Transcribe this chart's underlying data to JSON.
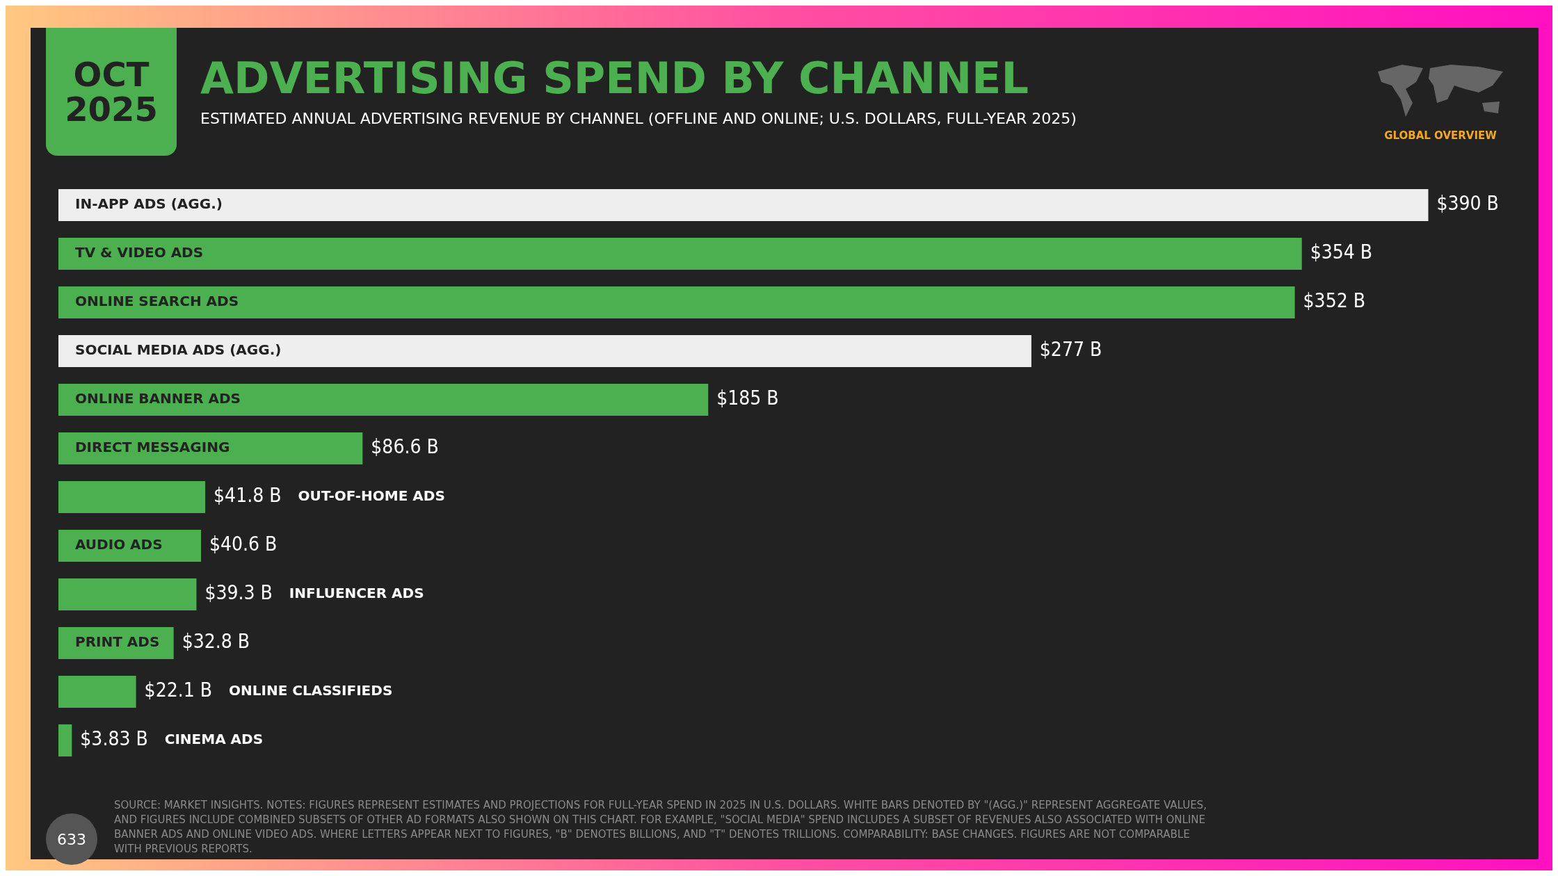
{
  "chart_data": {
    "type": "bar",
    "orientation": "horizontal",
    "title": "ADVERTISING SPEND BY CHANNEL",
    "subtitle": "ESTIMATED ANNUAL ADVERTISING REVENUE BY CHANNEL (OFFLINE AND ONLINE; U.S. DOLLARS, FULL-YEAR 2025)",
    "categories": [
      "IN-APP ADS (AGG.)",
      "TV & VIDEO ADS",
      "ONLINE SEARCH ADS",
      "SOCIAL MEDIA ADS (AGG.)",
      "ONLINE BANNER ADS",
      "DIRECT MESSAGING",
      "OUT-OF-HOME ADS",
      "AUDIO ADS",
      "INFLUENCER ADS",
      "PRINT ADS",
      "ONLINE CLASSIFIEDS",
      "CINEMA ADS"
    ],
    "values": [
      390,
      354,
      352,
      277,
      185,
      86.6,
      41.8,
      40.6,
      39.3,
      32.8,
      22.1,
      3.83
    ],
    "colors": [
      "#eeeeee",
      "#4caf50",
      "#4caf50",
      "#eeeeee",
      "#4caf50",
      "#4caf50",
      "#4caf50",
      "#4caf50",
      "#4caf50",
      "#4caf50",
      "#4caf50",
      "#4caf50"
    ],
    "value_labels": [
      "$390 B",
      "$354 B",
      "$352 B",
      "$277 B",
      "$185 B",
      "$86.6 B",
      "$41.8 B",
      "$40.6 B",
      "$39.3 B",
      "$32.8 B",
      "$22.1 B",
      "$3.83 B"
    ],
    "legend": false,
    "annotations": [
      "OCT 2025",
      "GLOBAL OVERVIEW",
      "633",
      "SOURCE: MARKET INSIGHTS. NOTES: FIGURES REPRESENT ESTIMATES AND PROJECTIONS FOR FULL-YEAR SPEND IN 2025 IN U.S. DOLLARS. WHITE BARS DENOTED BY \"(AGG.)\" REPRESENT AGGREGATE VALUES, AND FIGURES INCLUDE COMBINED SUBSETS OF OTHER AD FORMATS ALSO SHOWN ON THIS CHART. FOR EXAMPLE, \"SOCIAL MEDIA\" SPEND INCLUDES A SUBSET OF REVENUES ALSO ASSOCIATED WITH ONLINE BANNER ADS AND ONLINE VIDEO ADS. WHERE LETTERS APPEAR NEXT TO FIGURES, \"B\" DENOTES BILLIONS, AND \"T\" DENOTES TRILLIONS. COMPARABILITY: BASE CHANGES. FIGURES ARE NOT COMPARABLE WITH PREVIOUS REPORTS."
    ]
  }
}
